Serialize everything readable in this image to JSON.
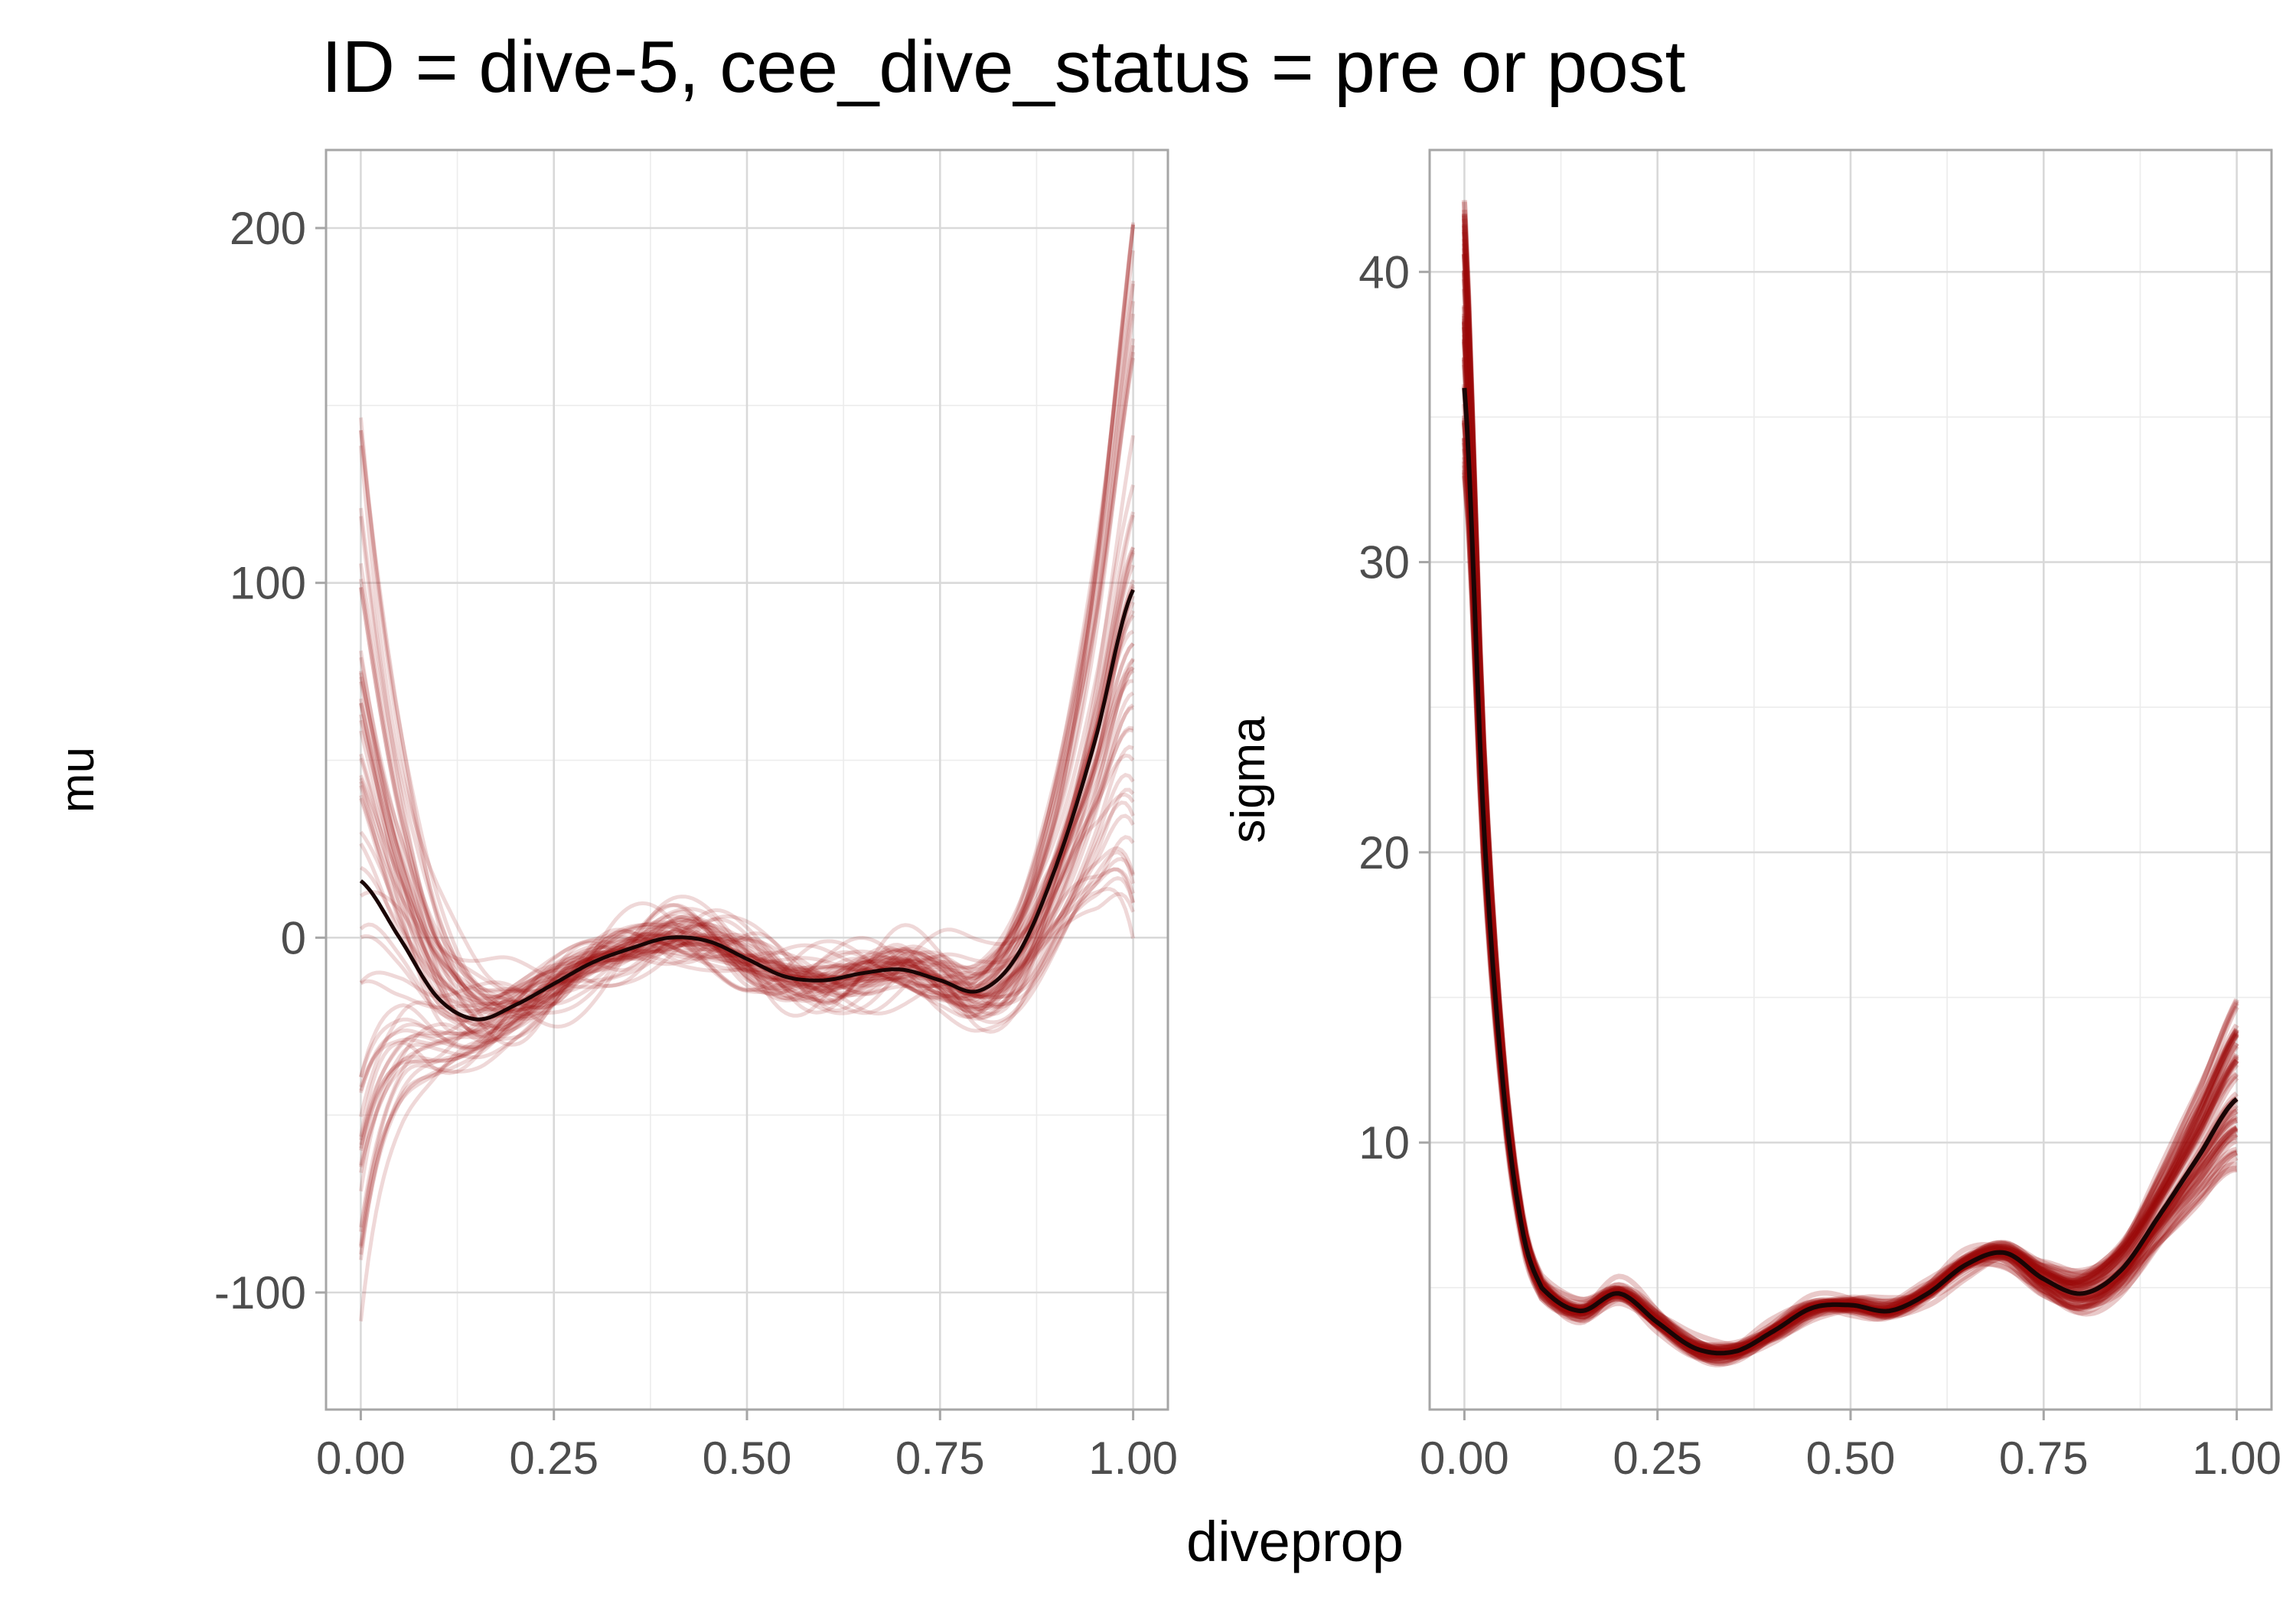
{
  "title": "ID = dive-5, cee_dive_status = pre or post",
  "shared_xlabel": "diveprop",
  "colors": {
    "draw_line": "#9b0a0a",
    "mean_line": "#1a0505",
    "grid": "#d9d9d9",
    "panel_border": "#a6a6a6"
  },
  "chart_data": [
    {
      "type": "line",
      "name": "mu",
      "ylabel": "mu",
      "xlim": [
        -0.045,
        1.045
      ],
      "ylim": [
        -133,
        222
      ],
      "x_ticks": [
        0,
        0.25,
        0.5,
        0.75,
        1
      ],
      "x_tick_labels": [
        "0.00",
        "0.25",
        "0.50",
        "0.75",
        "1.00"
      ],
      "y_ticks": [
        -100,
        0,
        100,
        200
      ],
      "y_tick_labels": [
        "-100",
        "0",
        "100",
        "200"
      ],
      "grid": true,
      "mean_curve": {
        "x": [
          0,
          0.05,
          0.1,
          0.15,
          0.2,
          0.25,
          0.3,
          0.35,
          0.4,
          0.45,
          0.5,
          0.55,
          0.6,
          0.65,
          0.7,
          0.75,
          0.8,
          0.85,
          0.9,
          0.95,
          1
        ],
        "y": [
          16,
          0,
          -17,
          -23,
          -19,
          -13,
          -7,
          -3,
          0,
          -1,
          -6,
          -11,
          -12,
          -10,
          -9,
          -12,
          -15,
          -5,
          20,
          55,
          98
        ]
      },
      "draws": {
        "count": 60,
        "y_range_at_0": [
          -118,
          152
        ],
        "y_range_at_1": [
          0,
          205
        ]
      }
    },
    {
      "type": "line",
      "name": "sigma",
      "ylabel": "sigma",
      "xlim": [
        -0.045,
        1.045
      ],
      "ylim": [
        0.8,
        44.2
      ],
      "x_ticks": [
        0,
        0.25,
        0.5,
        0.75,
        1
      ],
      "x_tick_labels": [
        "0.00",
        "0.25",
        "0.50",
        "0.75",
        "1.00"
      ],
      "y_ticks": [
        10,
        20,
        30,
        40
      ],
      "y_tick_labels": [
        "10",
        "20",
        "30",
        "40"
      ],
      "grid": true,
      "mean_curve": {
        "x": [
          0,
          0.025,
          0.05,
          0.075,
          0.1,
          0.15,
          0.2,
          0.25,
          0.3,
          0.35,
          0.4,
          0.45,
          0.5,
          0.55,
          0.6,
          0.65,
          0.7,
          0.75,
          0.8,
          0.85,
          0.9,
          0.95,
          1
        ],
        "y": [
          36,
          21,
          12,
          7,
          5,
          4.2,
          4.8,
          3.8,
          2.9,
          2.8,
          3.5,
          4.3,
          4.4,
          4.2,
          4.8,
          5.8,
          6.2,
          5.3,
          4.8,
          5.6,
          7.5,
          9.5,
          11.5
        ]
      },
      "draws": {
        "count": 60,
        "y_range_at_0": [
          33,
          42.5
        ],
        "y_range_at_1": [
          9,
          15
        ]
      }
    }
  ]
}
